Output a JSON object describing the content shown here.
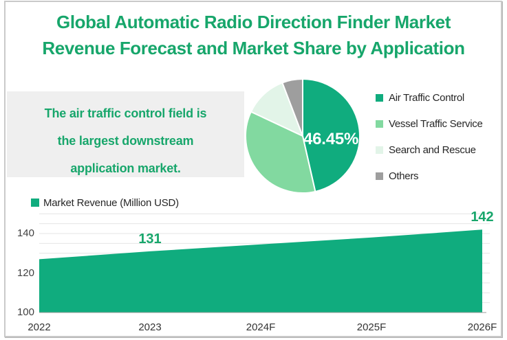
{
  "title": {
    "line1": "Global Automatic Radio Direction Finder Market",
    "line2": "Revenue Forecast and Market Share by Application"
  },
  "callout": {
    "line1": "The air traffic control field is",
    "line2": "the largest downstream",
    "line3": "application market."
  },
  "colors": {
    "title_green": "#17A66B",
    "callout_bg": "#EFEFEF",
    "grid_line": "#E4E4E4",
    "axis_line": "#9B9B9B",
    "legend_text": "#262626",
    "pie_label_text": "#FFFFFF"
  },
  "chart_data": [
    {
      "type": "pie",
      "labels": [
        "Air Traffic Control",
        "Vessel Traffic Service",
        "Search and Rescue",
        "Others"
      ],
      "values": [
        46.45,
        35.55,
        12.2,
        5.8
      ],
      "colors": [
        "#10AC7E",
        "#82D9A0",
        "#E2F4E8",
        "#9E9E9E"
      ],
      "data_label": "46.45%",
      "data_label_slice": "Air Traffic Control",
      "legend_position": "right",
      "start_angle_deg": 0,
      "direction": "clockwise"
    },
    {
      "type": "area",
      "legend_label": "Market Revenue (Million USD)",
      "categories": [
        "2022",
        "2023",
        "2024F",
        "2025F",
        "2026F"
      ],
      "values": [
        127,
        131,
        134.5,
        138,
        142
      ],
      "annotations": [
        {
          "index": 1,
          "text": "131"
        },
        {
          "index": 4,
          "text": "142"
        }
      ],
      "color": "#10AC7E",
      "ylim": [
        100,
        150
      ],
      "yticks": [
        100,
        120,
        140
      ],
      "minor_grid_step": 5,
      "grid": true,
      "legend_position": "top-left"
    }
  ]
}
